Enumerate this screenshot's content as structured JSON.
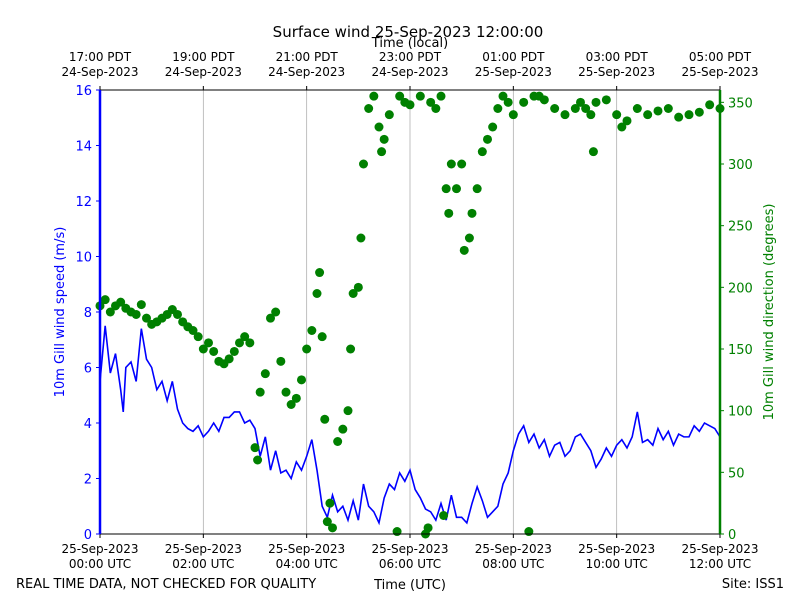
{
  "chart_data": {
    "type": "line",
    "title": "Surface wind 25-Sep-2023 12:00:00",
    "xlabel": "Time (UTC)",
    "x2label": "Time (local)",
    "ylabel": "10m Gill wind speed (m/s)",
    "y2label": "10m Gill wind direction (degrees)",
    "footer_left": "REAL TIME DATA, NOT CHECKED FOR QUALITY",
    "footer_right": "Site: ISS1",
    "grid": "x",
    "xlim": [
      0,
      12
    ],
    "xticks": [
      {
        "value": 0,
        "label": "25-Sep-2023\n00:00 UTC"
      },
      {
        "value": 2,
        "label": "25-Sep-2023\n02:00 UTC"
      },
      {
        "value": 4,
        "label": "25-Sep-2023\n04:00 UTC"
      },
      {
        "value": 6,
        "label": "25-Sep-2023\n06:00 UTC"
      },
      {
        "value": 8,
        "label": "25-Sep-2023\n08:00 UTC"
      },
      {
        "value": 10,
        "label": "25-Sep-2023\n10:00 UTC"
      },
      {
        "value": 12,
        "label": "25-Sep-2023\n12:00 UTC"
      }
    ],
    "x2ticks": [
      {
        "value": 0,
        "label": "17:00 PDT\n24-Sep-2023"
      },
      {
        "value": 2,
        "label": "19:00 PDT\n24-Sep-2023"
      },
      {
        "value": 4,
        "label": "21:00 PDT\n24-Sep-2023"
      },
      {
        "value": 6,
        "label": "23:00 PDT\n24-Sep-2023"
      },
      {
        "value": 8,
        "label": "01:00 PDT\n25-Sep-2023"
      },
      {
        "value": 10,
        "label": "03:00 PDT\n25-Sep-2023"
      },
      {
        "value": 12,
        "label": "05:00 PDT\n25-Sep-2023"
      }
    ],
    "ylim": [
      0,
      16
    ],
    "yticks": [
      0,
      2,
      4,
      6,
      8,
      10,
      12,
      14,
      16
    ],
    "y2lim": [
      0,
      360
    ],
    "y2ticks": [
      0,
      50,
      100,
      150,
      200,
      250,
      300,
      350
    ],
    "series": [
      {
        "name": "10m Gill wind speed",
        "type": "line",
        "color": "#0000ff",
        "axis": "y",
        "x": [
          0.0,
          0.1,
          0.2,
          0.3,
          0.4,
          0.45,
          0.5,
          0.6,
          0.7,
          0.8,
          0.9,
          1.0,
          1.1,
          1.2,
          1.3,
          1.4,
          1.5,
          1.6,
          1.7,
          1.8,
          1.9,
          2.0,
          2.1,
          2.2,
          2.3,
          2.4,
          2.5,
          2.6,
          2.7,
          2.8,
          2.9,
          3.0,
          3.1,
          3.2,
          3.3,
          3.4,
          3.5,
          3.6,
          3.7,
          3.8,
          3.9,
          4.0,
          4.1,
          4.2,
          4.3,
          4.4,
          4.5,
          4.6,
          4.7,
          4.8,
          4.9,
          5.0,
          5.1,
          5.2,
          5.3,
          5.4,
          5.5,
          5.6,
          5.7,
          5.8,
          5.9,
          6.0,
          6.1,
          6.2,
          6.3,
          6.4,
          6.5,
          6.6,
          6.7,
          6.8,
          6.9,
          7.0,
          7.1,
          7.2,
          7.3,
          7.4,
          7.5,
          7.6,
          7.7,
          7.8,
          7.9,
          8.0,
          8.1,
          8.2,
          8.3,
          8.4,
          8.5,
          8.6,
          8.7,
          8.8,
          8.9,
          9.0,
          9.1,
          9.2,
          9.3,
          9.4,
          9.5,
          9.6,
          9.7,
          9.8,
          9.9,
          10.0,
          10.1,
          10.2,
          10.3,
          10.4,
          10.5,
          10.6,
          10.7,
          10.8,
          10.9,
          11.0,
          11.1,
          11.2,
          11.3,
          11.4,
          11.5,
          11.6,
          11.7,
          11.8,
          11.9,
          12.0
        ],
        "values": [
          5.5,
          7.5,
          5.8,
          6.5,
          5.2,
          4.4,
          6.0,
          6.2,
          5.5,
          7.4,
          6.3,
          6.0,
          5.2,
          5.5,
          4.8,
          5.5,
          4.5,
          4.0,
          3.8,
          3.7,
          3.9,
          3.5,
          3.7,
          4.0,
          3.7,
          4.2,
          4.2,
          4.4,
          4.4,
          4.0,
          4.1,
          3.8,
          2.8,
          3.5,
          2.3,
          3.0,
          2.2,
          2.3,
          2.0,
          2.6,
          2.3,
          2.8,
          3.4,
          2.3,
          1.0,
          0.6,
          1.4,
          0.8,
          1.0,
          0.5,
          1.2,
          0.5,
          1.8,
          1.0,
          0.8,
          0.4,
          1.3,
          1.8,
          1.6,
          2.2,
          1.9,
          2.3,
          1.6,
          1.3,
          0.9,
          0.8,
          0.5,
          1.1,
          0.5,
          1.4,
          0.6,
          0.6,
          0.4,
          1.1,
          1.7,
          1.2,
          0.6,
          0.8,
          1.0,
          1.8,
          2.2,
          3.0,
          3.6,
          3.9,
          3.3,
          3.6,
          3.1,
          3.4,
          2.8,
          3.2,
          3.3,
          2.8,
          3.0,
          3.5,
          3.6,
          3.3,
          3.0,
          2.4,
          2.7,
          3.1,
          2.8,
          3.2,
          3.4,
          3.1,
          3.5,
          4.4,
          3.3,
          3.4,
          3.2,
          3.8,
          3.4,
          3.7,
          3.2,
          3.6,
          3.5,
          3.5,
          3.9,
          3.7,
          4.0,
          3.9,
          3.8,
          3.5
        ]
      },
      {
        "name": "10m Gill wind direction",
        "type": "scatter",
        "color": "#008000",
        "axis": "y2",
        "x": [
          0.0,
          0.1,
          0.2,
          0.3,
          0.4,
          0.5,
          0.6,
          0.7,
          0.8,
          0.9,
          1.0,
          1.1,
          1.2,
          1.3,
          1.4,
          1.5,
          1.6,
          1.7,
          1.8,
          1.9,
          2.0,
          2.1,
          2.2,
          2.3,
          2.4,
          2.5,
          2.6,
          2.7,
          2.8,
          2.9,
          3.0,
          3.05,
          3.1,
          3.2,
          3.3,
          3.4,
          3.5,
          3.6,
          3.7,
          3.8,
          3.9,
          4.0,
          4.1,
          4.2,
          4.25,
          4.3,
          4.35,
          4.4,
          4.45,
          4.5,
          4.6,
          4.7,
          4.8,
          4.85,
          4.9,
          5.0,
          5.05,
          5.1,
          5.2,
          5.3,
          5.4,
          5.45,
          5.5,
          5.6,
          5.75,
          5.8,
          5.9,
          6.0,
          6.2,
          6.3,
          6.35,
          6.4,
          6.5,
          6.6,
          6.65,
          6.7,
          6.75,
          6.8,
          6.9,
          7.0,
          7.05,
          7.15,
          7.2,
          7.3,
          7.4,
          7.5,
          7.6,
          7.7,
          7.8,
          7.9,
          8.0,
          8.2,
          8.3,
          8.4,
          8.5,
          8.6,
          8.8,
          9.0,
          9.2,
          9.3,
          9.4,
          9.5,
          9.55,
          9.6,
          9.8,
          10.0,
          10.1,
          10.2,
          10.4,
          10.6,
          10.8,
          11.0,
          11.2,
          11.4,
          11.6,
          11.8,
          12.0
        ],
        "values": [
          185,
          190,
          180,
          185,
          188,
          183,
          180,
          178,
          186,
          175,
          170,
          172,
          175,
          178,
          182,
          178,
          172,
          168,
          165,
          160,
          150,
          155,
          148,
          140,
          138,
          142,
          148,
          155,
          160,
          155,
          70,
          60,
          115,
          130,
          175,
          180,
          140,
          115,
          105,
          110,
          125,
          150,
          165,
          195,
          212,
          160,
          93,
          10,
          25,
          5,
          75,
          85,
          100,
          150,
          195,
          200,
          240,
          300,
          345,
          355,
          330,
          310,
          320,
          340,
          2,
          355,
          350,
          348,
          355,
          0,
          5,
          350,
          345,
          355,
          15,
          280,
          260,
          300,
          280,
          300,
          230,
          240,
          260,
          280,
          310,
          320,
          330,
          345,
          355,
          350,
          340,
          350,
          2,
          355,
          355,
          352,
          345,
          340,
          345,
          350,
          345,
          340,
          310,
          350,
          352,
          340,
          330,
          335,
          345,
          340,
          343,
          345,
          338,
          340,
          342,
          348,
          345
        ]
      }
    ]
  }
}
